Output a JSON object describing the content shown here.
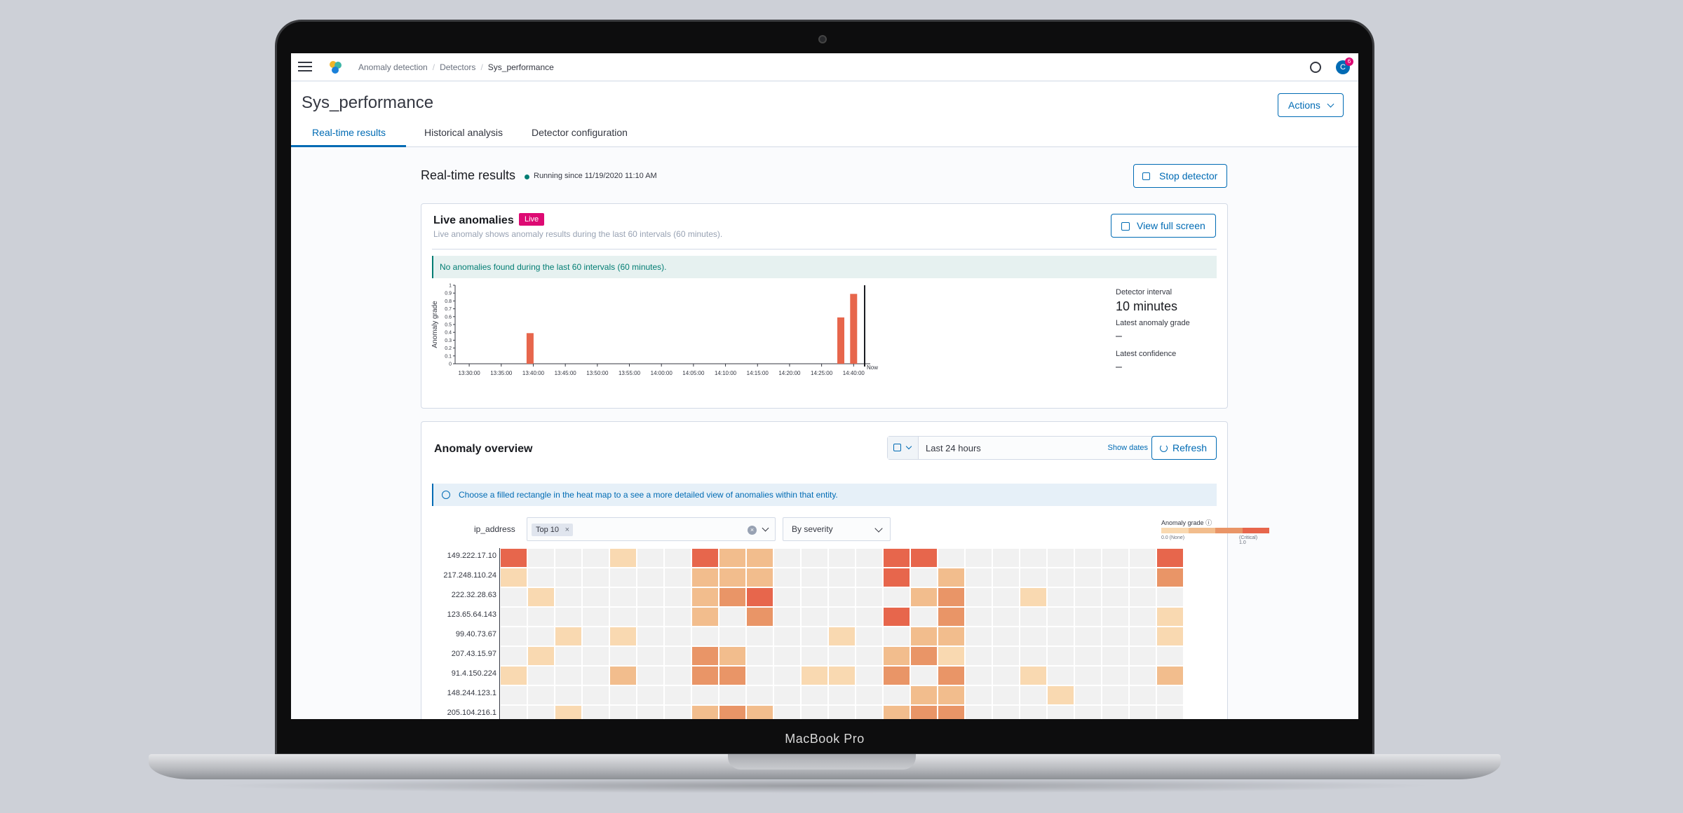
{
  "device": {
    "label": "MacBook Pro"
  },
  "topbar": {
    "breadcrumbs": [
      "Anomaly detection",
      "Detectors",
      "Sys_performance"
    ],
    "avatar_initial": "C",
    "notification_count": "6"
  },
  "header": {
    "title": "Sys_performance",
    "actions_label": "Actions",
    "tabs": [
      "Real-time results",
      "Historical analysis",
      "Detector configuration"
    ]
  },
  "realtime": {
    "title": "Real-time results",
    "status": "Running since 11/19/2020 11:10 AM",
    "stop_label": "Stop detector"
  },
  "live": {
    "title": "Live anomalies",
    "badge": "Live",
    "subtitle": "Live anomaly shows anomaly results during the last 60 intervals (60 minutes).",
    "view_full_label": "View full screen",
    "callout": "No anomalies found during the last 60 intervals (60 minutes).",
    "detector_interval_label": "Detector interval",
    "detector_interval_value": "10 minutes",
    "latest_grade_label": "Latest anomaly grade",
    "latest_grade_value": "–",
    "latest_confidence_label": "Latest confidence",
    "latest_confidence_value": "–"
  },
  "chart_data": {
    "type": "bar",
    "ylabel": "Anomaly grade",
    "ylim": [
      0,
      1
    ],
    "yticks": [
      "0",
      "0.1",
      "0.2",
      "0.3",
      "0.4",
      "0.5",
      "0.6",
      "0.7",
      "0.8",
      "0.9",
      "1"
    ],
    "xticks": [
      "13:30:00",
      "13:35:00",
      "13:40:00",
      "13:45:00",
      "13:50:00",
      "13:55:00",
      "14:00:00",
      "14:05:00",
      "14:10:00",
      "14:15:00",
      "14:20:00",
      "14:25:00",
      "14:40:00"
    ],
    "now_label": "Now",
    "bars": [
      {
        "x": "13:39:30",
        "value": 0.39
      },
      {
        "x": "14:28:00",
        "value": 0.59
      },
      {
        "x": "14:30:00",
        "value": 0.89
      }
    ],
    "color": "#e7664c"
  },
  "overview": {
    "title": "Anomaly overview",
    "date_range": "Last 24 hours",
    "show_dates": "Show dates",
    "refresh_label": "Refresh",
    "info": "Choose a filled rectangle in the heat map to a see a more detailed view of anomalies within that entity.",
    "field_label": "ip_address",
    "filter_pill": "Top 10",
    "sort_label": "By severity",
    "legend_title": "Anomaly grade",
    "legend_min": "0.0 (None)",
    "legend_max": "(Critical) 1.0",
    "rows": [
      "149.222.17.10",
      "217.248.110.24",
      "222.32.28.63",
      "123.65.64.143",
      "99.40.73.67",
      "207.43.15.97",
      "91.4.150.224",
      "148.244.123.1",
      "205.104.216.1"
    ],
    "heatmap": [
      [
        4,
        0,
        0,
        0,
        1,
        0,
        0,
        4,
        2,
        2,
        0,
        0,
        0,
        0,
        4,
        4,
        0,
        0,
        0,
        0,
        0,
        0,
        0,
        0,
        4
      ],
      [
        1,
        0,
        0,
        0,
        0,
        0,
        0,
        2,
        2,
        2,
        0,
        0,
        0,
        0,
        4,
        0,
        2,
        0,
        0,
        0,
        0,
        0,
        0,
        0,
        3
      ],
      [
        0,
        1,
        0,
        0,
        0,
        0,
        0,
        2,
        3,
        4,
        0,
        0,
        0,
        0,
        0,
        2,
        3,
        0,
        0,
        1,
        0,
        0,
        0,
        0,
        0
      ],
      [
        0,
        0,
        0,
        0,
        0,
        0,
        0,
        2,
        0,
        3,
        0,
        0,
        0,
        0,
        4,
        0,
        3,
        0,
        0,
        0,
        0,
        0,
        0,
        0,
        1
      ],
      [
        0,
        0,
        1,
        0,
        1,
        0,
        0,
        0,
        0,
        0,
        0,
        0,
        1,
        0,
        0,
        2,
        2,
        0,
        0,
        0,
        0,
        0,
        0,
        0,
        1
      ],
      [
        0,
        1,
        0,
        0,
        0,
        0,
        0,
        3,
        2,
        0,
        0,
        0,
        0,
        0,
        2,
        3,
        1,
        0,
        0,
        0,
        0,
        0,
        0,
        0,
        0
      ],
      [
        1,
        0,
        0,
        0,
        2,
        0,
        0,
        3,
        3,
        0,
        0,
        1,
        1,
        0,
        3,
        0,
        3,
        0,
        0,
        1,
        0,
        0,
        0,
        0,
        2
      ],
      [
        0,
        0,
        0,
        0,
        0,
        0,
        0,
        0,
        0,
        0,
        0,
        0,
        0,
        0,
        0,
        2,
        2,
        0,
        0,
        0,
        1,
        0,
        0,
        0,
        0
      ],
      [
        0,
        0,
        1,
        0,
        0,
        0,
        0,
        2,
        3,
        2,
        0,
        0,
        0,
        0,
        2,
        3,
        3,
        0,
        0,
        0,
        0,
        0,
        0,
        0,
        0
      ]
    ],
    "heat_colors": [
      "#f1f1f1",
      "#f9d9b1",
      "#f2bd8d",
      "#e99567",
      "#e7664c"
    ]
  }
}
